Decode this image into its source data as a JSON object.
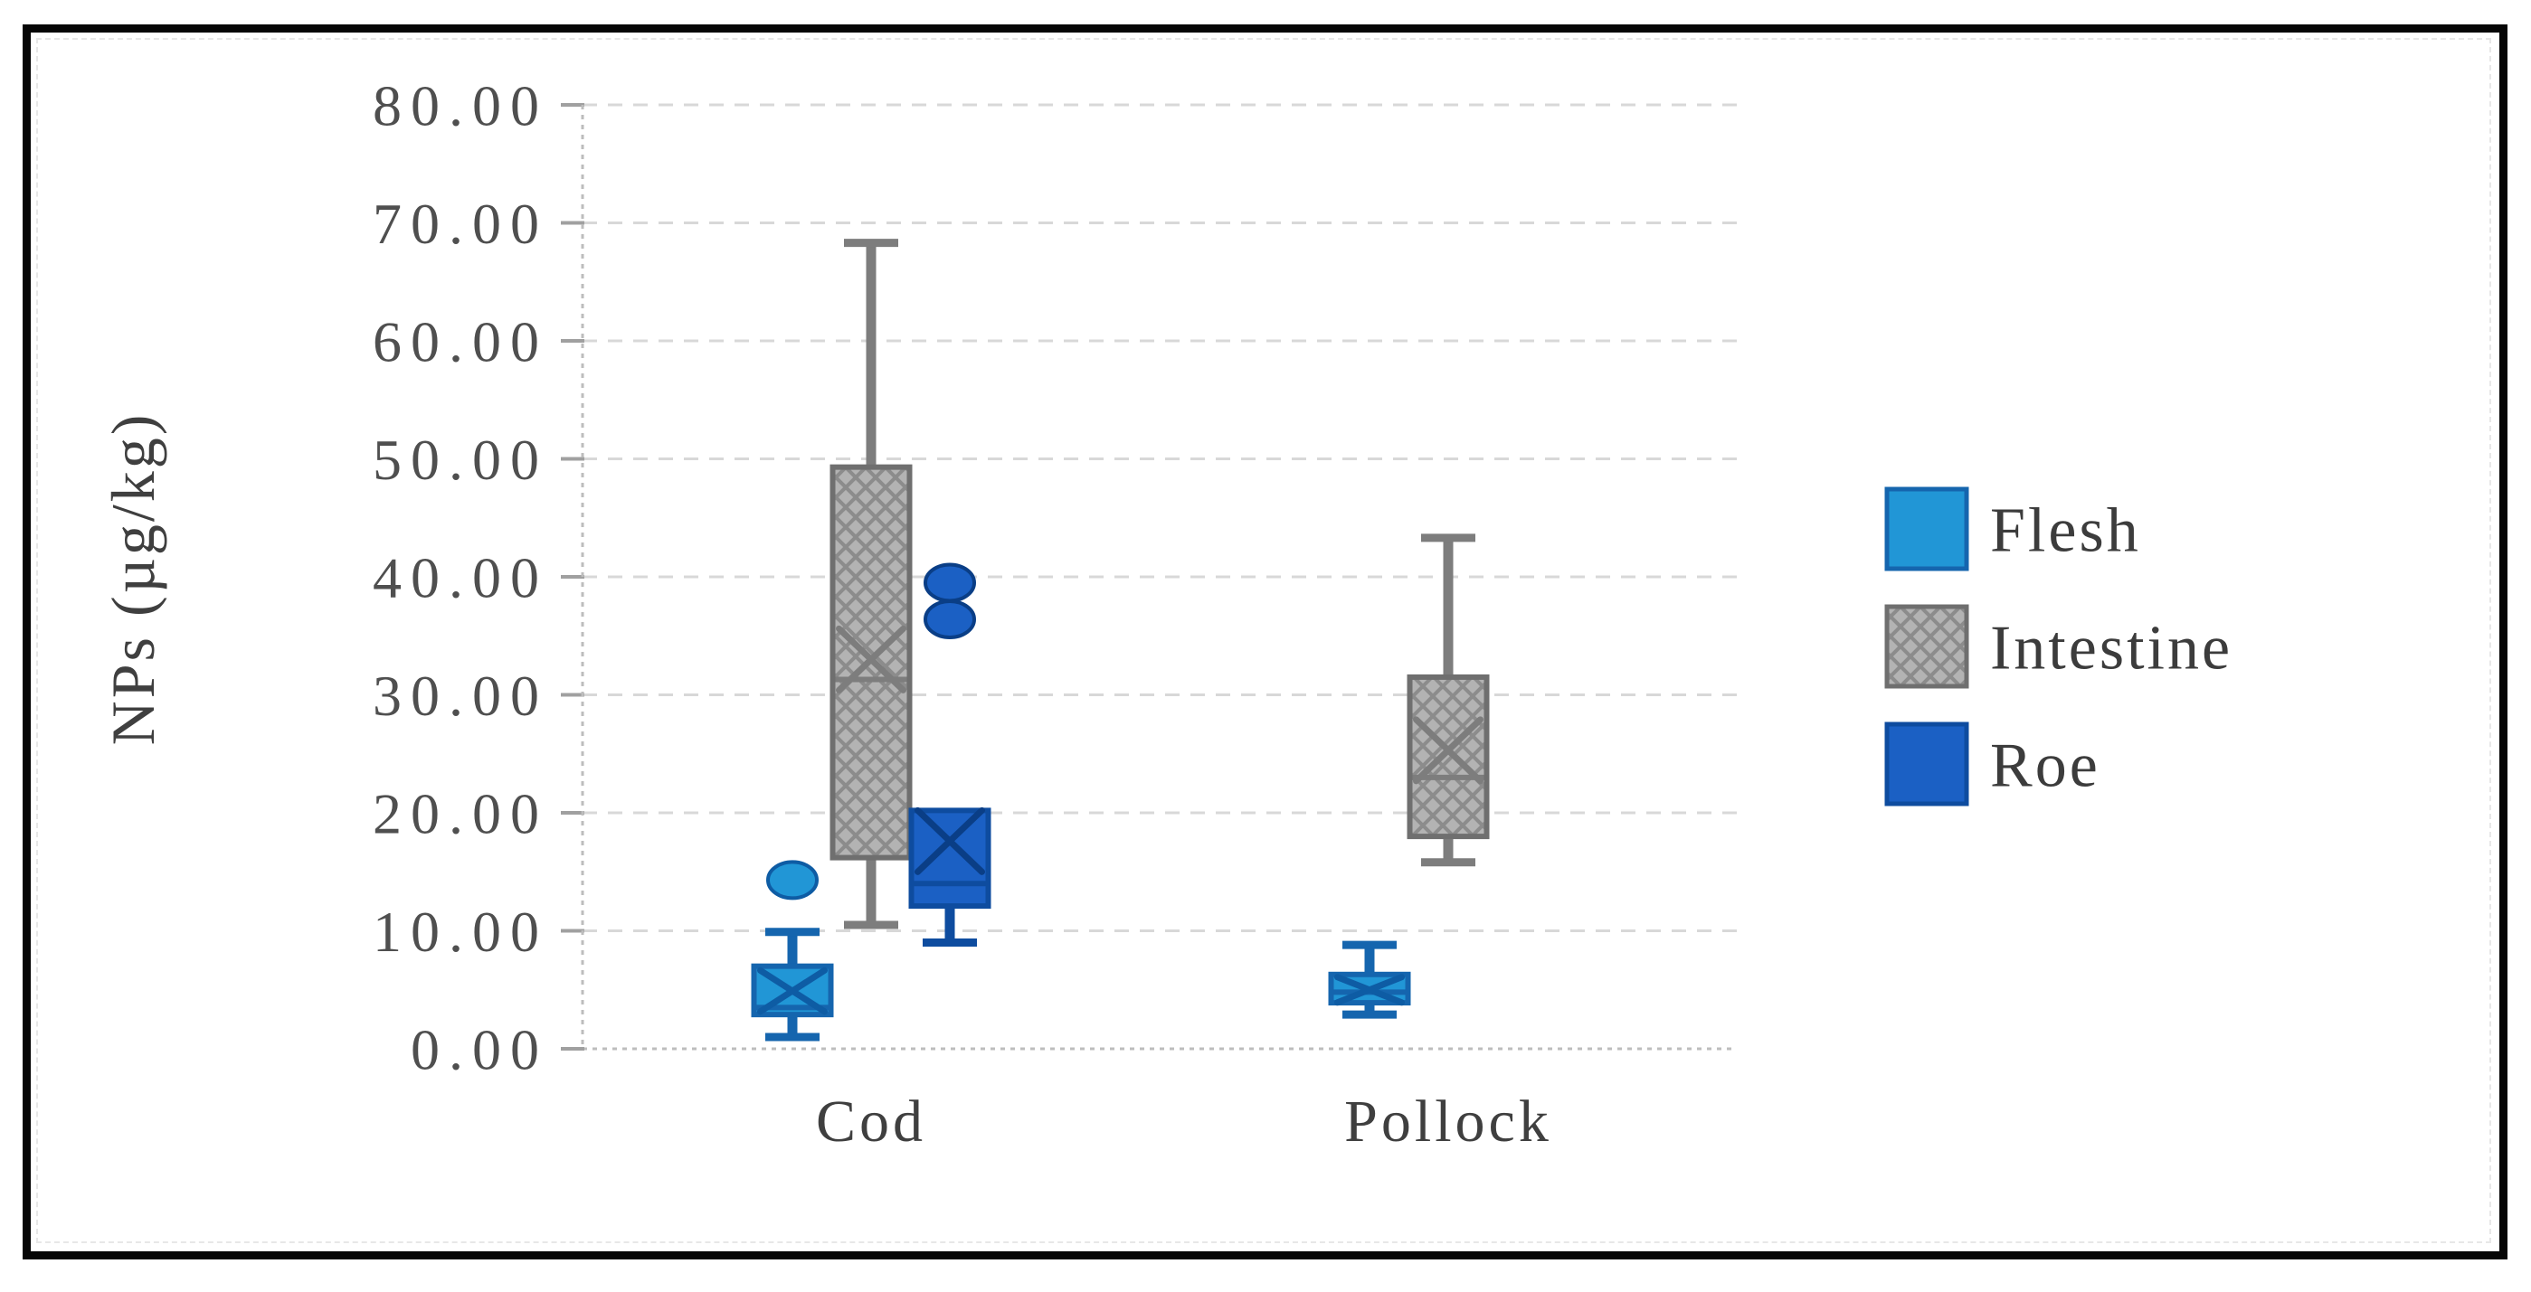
{
  "figure": {
    "background": "#ffffff",
    "frame_color": "#060606"
  },
  "chart_data": {
    "type": "boxplot",
    "title": "",
    "ylabel": "NPs (µg/kg)",
    "xlabel": "",
    "ylim": [
      0,
      80
    ],
    "ytick_step": 10,
    "ytick_labels": [
      "0.00",
      "10.00",
      "20.00",
      "30.00",
      "40.00",
      "50.00",
      "60.00",
      "70.00",
      "80.00"
    ],
    "categories": [
      "Cod",
      "Pollock"
    ],
    "grid": true,
    "legend_position": "right",
    "legend_items": [
      "Flesh",
      "Intestine",
      "Roe"
    ],
    "series": [
      {
        "name": "Flesh",
        "fill": "#2196d6",
        "stroke": "#1565ae",
        "marker": "#0e5ca4",
        "pattern": "solid",
        "boxes": [
          {
            "category": "Cod",
            "whisker_low": 1.0,
            "q1": 2.9,
            "median": 3.5,
            "mean": 4.9,
            "q3": 7.0,
            "whisker_high": 9.9,
            "outliers": [
              14.3
            ]
          },
          {
            "category": "Pollock",
            "whisker_low": 2.9,
            "q1": 3.9,
            "median": 4.8,
            "mean": 5.0,
            "q3": 6.3,
            "whisker_high": 8.8,
            "outliers": []
          }
        ]
      },
      {
        "name": "Intestine",
        "fill": "#b3b3b3",
        "stroke": "#6f6f6f",
        "marker": "#7d7d7d",
        "pattern": "crosshatch",
        "boxes": [
          {
            "category": "Cod",
            "whisker_low": 10.5,
            "q1": 16.2,
            "median": 31.3,
            "mean": 33.0,
            "q3": 49.3,
            "whisker_high": 68.3,
            "outliers": []
          },
          {
            "category": "Pollock",
            "whisker_low": 15.8,
            "q1": 18.0,
            "median": 23.0,
            "mean": 25.3,
            "q3": 31.5,
            "whisker_high": 43.3,
            "outliers": []
          }
        ]
      },
      {
        "name": "Roe",
        "fill": "#1b60c4",
        "stroke": "#0e4c9f",
        "marker": "#0a3e86",
        "pattern": "solid",
        "boxes": [
          {
            "category": "Cod",
            "whisker_low": 9.0,
            "q1": 12.1,
            "median": 14.0,
            "mean": 17.6,
            "q3": 20.2,
            "whisker_high": 20.2,
            "outliers": [
              36.4,
              39.5
            ]
          },
          null
        ]
      }
    ],
    "colors": {
      "gridline": "#d8d8d8",
      "axis": "#bdbdbd",
      "tick": "#a0a0a0",
      "tick_label": "#4f4f4f",
      "axis_title": "#3f3f3f",
      "category_label": "#3f3f3f",
      "legend_label": "#3c3c3c"
    }
  }
}
